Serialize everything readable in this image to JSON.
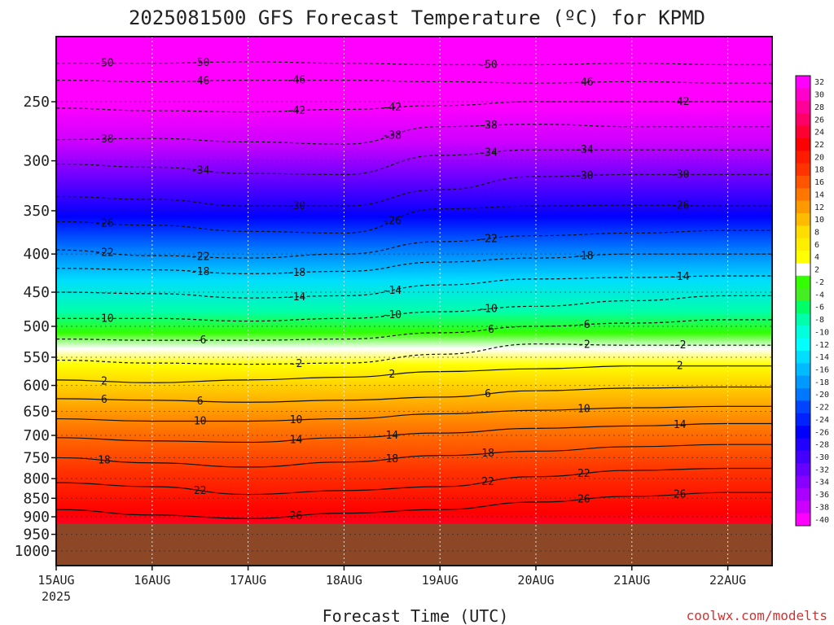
{
  "chart_data": {
    "type": "heatmap",
    "title": "2025081500 GFS Forecast Temperature (ºC) for KPMD",
    "xlabel": "Forecast Time (UTC)",
    "credit": "coolwx.com/modelts",
    "y_scale": "log-pressure",
    "y_ticks": [
      "250",
      "300",
      "350",
      "400",
      "450",
      "500",
      "550",
      "600",
      "650",
      "700",
      "750",
      "800",
      "850",
      "900",
      "950",
      "1000"
    ],
    "x_ticks": [
      "15AUG",
      "16AUG",
      "17AUG",
      "18AUG",
      "19AUG",
      "20AUG",
      "21AUG",
      "22AUG"
    ],
    "x_tick_sub": "2025",
    "ground_level_hpa": 920,
    "grid": true,
    "colorbar": {
      "placement": "right",
      "labels": [
        "32",
        "30",
        "28",
        "26",
        "24",
        "22",
        "20",
        "18",
        "16",
        "14",
        "12",
        "10",
        "8",
        "6",
        "4",
        "2",
        "-2",
        "-4",
        "-6",
        "-8",
        "-10",
        "-12",
        "-14",
        "-16",
        "-18",
        "-20",
        "-22",
        "-24",
        "-26",
        "-28",
        "-30",
        "-32",
        "-34",
        "-36",
        "-38",
        "-40"
      ],
      "colors": [
        "#ff00ff",
        "#ff00cc",
        "#ff0099",
        "#ff0066",
        "#ff0033",
        "#ff0000",
        "#ff1a00",
        "#ff3300",
        "#ff5500",
        "#ff7700",
        "#ff9900",
        "#ffbb00",
        "#ffdd00",
        "#ffee00",
        "#ffff00",
        "#ffffff",
        "#33ff00",
        "#44ee22",
        "#00ff66",
        "#00ffaa",
        "#00ffdd",
        "#00ffff",
        "#00ddff",
        "#00bbff",
        "#0099ff",
        "#0077ff",
        "#0044ff",
        "#0022ff",
        "#0000ff",
        "#2200ff",
        "#4400ff",
        "#6600ff",
        "#8800ff",
        "#aa00ff",
        "#cc00ff",
        "#ff00ff"
      ]
    },
    "contours": [
      {
        "value": -50,
        "label": "-50",
        "p": [
          222,
          222,
          221,
          222,
          223,
          223,
          222,
          223
        ]
      },
      {
        "value": -46,
        "label": "-46",
        "p": [
          234,
          235,
          234,
          234,
          235,
          236,
          235,
          236
        ]
      },
      {
        "value": -42,
        "label": "-42",
        "p": [
          255,
          257,
          258,
          256,
          253,
          250,
          250,
          250
        ]
      },
      {
        "value": -38,
        "label": "-38",
        "p": [
          281,
          280,
          283,
          285,
          270,
          268,
          270,
          270
        ]
      },
      {
        "value": -34,
        "label": "-34",
        "p": [
          303,
          306,
          312,
          313,
          295,
          290,
          290,
          290
        ]
      },
      {
        "value": -30,
        "label": "-30",
        "p": [
          335,
          338,
          345,
          345,
          328,
          315,
          313,
          313
        ]
      },
      {
        "value": -26,
        "label": "-26",
        "p": [
          362,
          366,
          373,
          375,
          348,
          345,
          344,
          345
        ]
      },
      {
        "value": -22,
        "label": "-22",
        "p": [
          395,
          402,
          405,
          400,
          385,
          378,
          375,
          372
        ]
      },
      {
        "value": -18,
        "label": "-18",
        "p": [
          418,
          420,
          425,
          422,
          410,
          405,
          400,
          400
        ]
      },
      {
        "value": -14,
        "label": "-14",
        "p": [
          450,
          452,
          458,
          455,
          440,
          432,
          430,
          428
        ]
      },
      {
        "value": -10,
        "label": "-10",
        "p": [
          488,
          488,
          492,
          488,
          478,
          470,
          462,
          455
        ]
      },
      {
        "value": -6,
        "label": "-6",
        "p": [
          520,
          522,
          522,
          520,
          510,
          500,
          495,
          490
        ]
      },
      {
        "value": -2,
        "label": "-2",
        "p": [
          555,
          560,
          562,
          560,
          545,
          528,
          530,
          530
        ]
      },
      {
        "value": 2,
        "label": "2",
        "p": [
          590,
          595,
          590,
          585,
          575,
          570,
          565,
          565
        ]
      },
      {
        "value": 6,
        "label": "6",
        "p": [
          625,
          628,
          632,
          628,
          622,
          610,
          605,
          603
        ]
      },
      {
        "value": 10,
        "label": "10",
        "p": [
          665,
          670,
          670,
          665,
          655,
          648,
          643,
          640
        ]
      },
      {
        "value": 14,
        "label": "14",
        "p": [
          705,
          712,
          715,
          705,
          695,
          685,
          680,
          675
        ]
      },
      {
        "value": 18,
        "label": "18",
        "p": [
          750,
          762,
          772,
          760,
          745,
          735,
          725,
          720
        ]
      },
      {
        "value": 22,
        "label": "22",
        "p": [
          810,
          820,
          840,
          830,
          820,
          795,
          780,
          775
        ]
      },
      {
        "value": 26,
        "label": "26",
        "p": [
          880,
          895,
          905,
          890,
          880,
          860,
          845,
          835
        ]
      }
    ]
  }
}
